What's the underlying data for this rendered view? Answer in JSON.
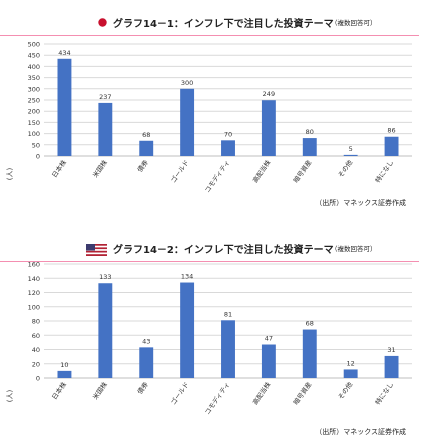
{
  "charts": [
    {
      "title": "グラフ14－1：インフレ下で注目した投資テーマ",
      "note": "（複数回答可）",
      "flag": "japan-flag-icon",
      "unit_label": "(人)",
      "source": "（出所）マネックス証券作成"
    },
    {
      "title": "グラフ14－2：インフレ下で注目した投資テーマ",
      "note": "（複数回答可）",
      "flag": "us-flag-icon",
      "unit_label": "(人)",
      "source": "（出所）マネックス証券作成"
    }
  ],
  "colors": {
    "bar": "#4472c4",
    "grid": "#d9d9d9",
    "title_rule": "#f48fb1"
  },
  "chart_data": [
    {
      "type": "bar",
      "title": "グラフ14－1：インフレ下で注目した投資テーマ",
      "categories": [
        "日本株",
        "米国株",
        "債券",
        "ゴールド",
        "コモディティ",
        "高配当株",
        "暗号資産",
        "その他",
        "特になし"
      ],
      "values": [
        434,
        237,
        68,
        300,
        70,
        249,
        80,
        5,
        86
      ],
      "ylabel": "(人)",
      "ylim": [
        0,
        500
      ],
      "yticks": [
        0,
        50,
        100,
        150,
        200,
        250,
        300,
        350,
        400,
        450,
        500
      ],
      "grid": true,
      "data_labels": true
    },
    {
      "type": "bar",
      "title": "グラフ14－2：インフレ下で注目した投資テーマ",
      "categories": [
        "日本株",
        "米国株",
        "債券",
        "ゴールド",
        "コモディティ",
        "高配当株",
        "暗号資産",
        "その他",
        "特になし"
      ],
      "values": [
        10,
        133,
        43,
        134,
        81,
        47,
        68,
        12,
        31
      ],
      "ylabel": "(人)",
      "ylim": [
        0,
        160
      ],
      "yticks": [
        0,
        20,
        40,
        60,
        80,
        100,
        120,
        140,
        160
      ],
      "grid": true,
      "data_labels": true
    }
  ]
}
